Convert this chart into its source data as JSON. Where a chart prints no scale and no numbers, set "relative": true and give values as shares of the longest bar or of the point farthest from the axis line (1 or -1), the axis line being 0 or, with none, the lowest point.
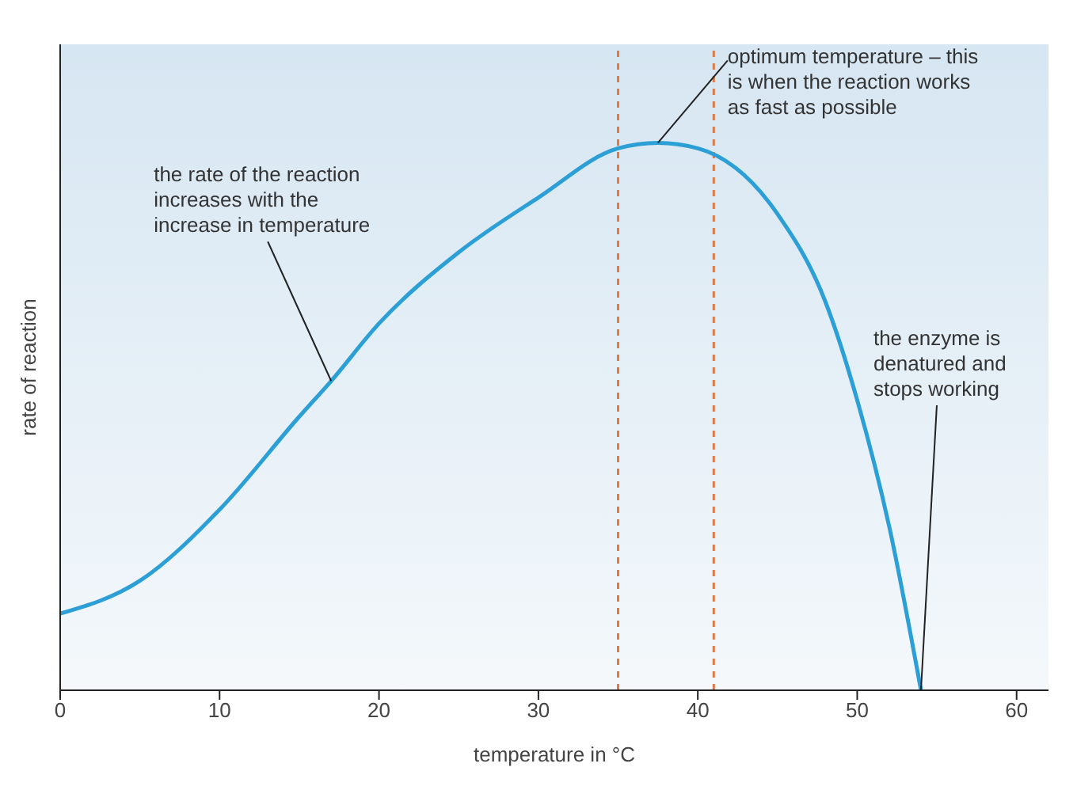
{
  "chart_data": {
    "type": "line",
    "relative": true,
    "xlabel": "temperature in °C",
    "ylabel": "rate of reaction",
    "x": [
      0,
      5,
      10,
      15,
      17,
      20,
      25,
      30,
      35,
      37.5,
      40,
      45,
      48,
      50,
      52,
      54
    ],
    "series": [
      {
        "color": "#2b9fd6",
        "values": [
          0.14,
          0.2,
          0.33,
          0.5,
          0.565,
          0.67,
          0.8,
          0.9,
          0.99,
          1,
          0.99,
          0.87,
          0.71,
          0.53,
          0.3,
          0
        ]
      }
    ],
    "xlim": [
      0,
      62
    ],
    "xticks": [
      0,
      10,
      20,
      30,
      40,
      50,
      60
    ],
    "marker": "none",
    "line_style": "solid",
    "ref_lines": [
      {
        "axis": "x",
        "value": 35,
        "color": "#e07a45",
        "line_style": "dashed"
      },
      {
        "axis": "x",
        "value": 41,
        "color": "#e07a45",
        "line_style": "dashed"
      }
    ],
    "annotations": [
      {
        "text": "the rate of the reaction increases with the increase in temperature",
        "x": 17,
        "y": 0.565
      },
      {
        "text": "optimum temperature – this is when the reaction works as fast as possible",
        "x": 37.5,
        "y": 1
      },
      {
        "text": "the enzyme is denatured and stops working",
        "x": 54,
        "y": 0
      }
    ]
  }
}
